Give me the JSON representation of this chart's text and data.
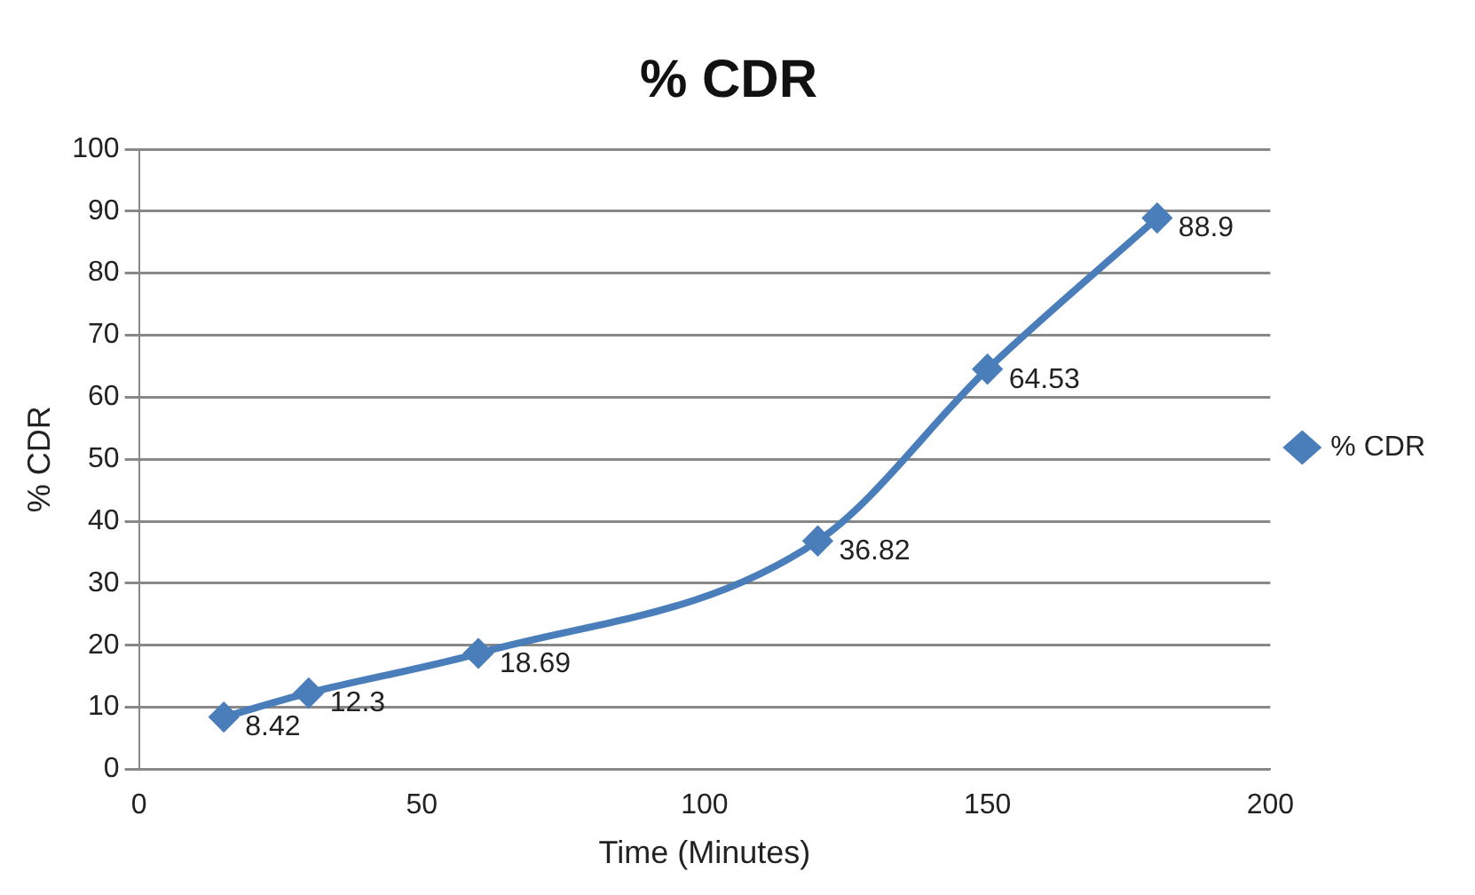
{
  "chart_data": {
    "type": "line",
    "title": "% CDR",
    "xlabel": "Time (Minutes)",
    "ylabel": "% CDR",
    "series": [
      {
        "name": "% CDR",
        "color": "#4a7ebb",
        "x": [
          15,
          30,
          60,
          120,
          150,
          180
        ],
        "values": [
          8.42,
          12.3,
          18.69,
          36.82,
          64.53,
          88.9
        ]
      }
    ],
    "xlim": [
      0,
      200
    ],
    "xticks": [
      0,
      50,
      100,
      150,
      200
    ],
    "ylim": [
      0,
      100
    ],
    "yticks": [
      0,
      10,
      20,
      30,
      40,
      50,
      60,
      70,
      80,
      90,
      100
    ],
    "grid": "y",
    "legend": "right",
    "marker": "diamond",
    "line_style": "solid",
    "data_labels": true
  }
}
